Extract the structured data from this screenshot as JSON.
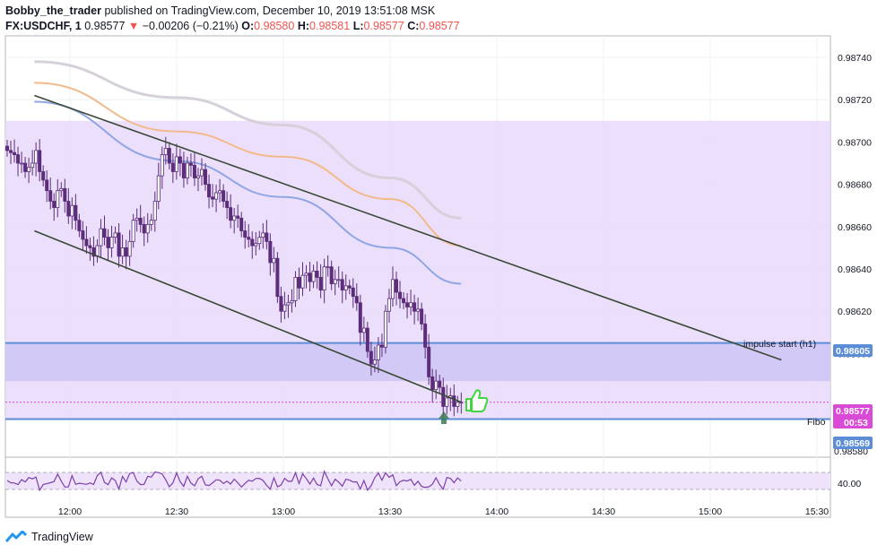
{
  "header": {
    "author": "Bobby_the_trader",
    "published": "published on TradingView.com, December 10, 2019 13:51:08 MSK",
    "symbol": "FX:USDCHF, 1",
    "last": "0.98577",
    "arrow": "▼",
    "change": "−0.00206 (−0.21%)",
    "o_label": "O:",
    "o_value": "0.98580",
    "h_label": "H:",
    "h_value": "0.98581",
    "l_label": "L:",
    "l_value": "0.98577",
    "c_label": "C:",
    "c_value": "0.98577"
  },
  "annotations": {
    "impulse": "impulse start (h1)",
    "fibo": "Fibo"
  },
  "price_tags": {
    "impulse": "0.98605",
    "last": "0.98577",
    "countdown": "00:53",
    "fibo": "0.98569",
    "partial": "0.98580"
  },
  "rsi": {
    "level_label": "40.00"
  },
  "footer": {
    "brand": "TradingView",
    "logo_icon": "tradingview-logo-icon"
  },
  "colors": {
    "zone": "#e8d9fb",
    "zone_band": "#cfc6f6",
    "level_line": "#5b8ed6",
    "last_tag": "#d94ad6",
    "trendline": "#3b4a36",
    "ma_gray": "#d5d0da",
    "ma_orange": "#f2b98a",
    "ma_blue": "#8fa5e4",
    "candle": "#5c2d7a",
    "thumb": "#3fd63f"
  },
  "chart_data": {
    "type": "candlestick",
    "symbol": "FX:USDCHF",
    "interval": "1",
    "x_ticks": [
      "12:00",
      "12:30",
      "13:00",
      "13:30",
      "14:00",
      "14:30",
      "15:00",
      "15:30"
    ],
    "y_ticks": [
      "0.98740",
      "0.98720",
      "0.98700",
      "0.98680",
      "0.98660",
      "0.98640",
      "0.98620",
      "0.98600"
    ],
    "ylim": [
      0.9855,
      0.9876
    ],
    "zone": {
      "top": 0.9871,
      "bottom": 0.98569
    },
    "band": {
      "top": 0.98605,
      "bottom": 0.98587
    },
    "levels": [
      {
        "name": "impulse start (h1)",
        "price": 0.98605
      },
      {
        "name": "Fibo",
        "price": 0.98569
      }
    ],
    "last_price": 0.98577,
    "channel": {
      "upper": [
        [
          "11:50",
          0.98722
        ],
        [
          "15:20",
          0.98597
        ]
      ],
      "lower": [
        [
          "11:50",
          0.98658
        ],
        [
          "13:50",
          0.98577
        ]
      ]
    },
    "moving_averages": [
      {
        "color": "gray",
        "points": [
          [
            "11:50",
            0.98738
          ],
          [
            "12:30",
            0.98721
          ],
          [
            "13:00",
            0.98708
          ],
          [
            "13:30",
            0.98683
          ],
          [
            "13:50",
            0.98664
          ]
        ]
      },
      {
        "color": "orange",
        "points": [
          [
            "11:50",
            0.98728
          ],
          [
            "12:30",
            0.98705
          ],
          [
            "13:00",
            0.98693
          ],
          [
            "13:30",
            0.98673
          ],
          [
            "13:50",
            0.98651
          ]
        ]
      },
      {
        "color": "blue",
        "points": [
          [
            "11:50",
            0.98719
          ],
          [
            "12:30",
            0.98691
          ],
          [
            "13:00",
            0.98674
          ],
          [
            "13:30",
            0.9865
          ],
          [
            "13:50",
            0.98633
          ]
        ]
      }
    ],
    "candles_close": [
      0.98696,
      0.98695,
      0.98694,
      0.9869,
      0.9869,
      0.98686,
      0.98688,
      0.9869,
      0.98696,
      0.98686,
      0.98682,
      0.98677,
      0.98672,
      0.98669,
      0.98677,
      0.98678,
      0.98672,
      0.98665,
      0.9867,
      0.98663,
      0.98658,
      0.98654,
      0.98651,
      0.9865,
      0.98646,
      0.98651,
      0.98659,
      0.98655,
      0.9865,
      0.98655,
      0.98657,
      0.98646,
      0.9865,
      0.98646,
      0.98653,
      0.98663,
      0.98664,
      0.98661,
      0.98657,
      0.98661,
      0.98663,
      0.98672,
      0.98684,
      0.98694,
      0.98697,
      0.9869,
      0.98686,
      0.98693,
      0.9869,
      0.98683,
      0.9869,
      0.98689,
      0.98683,
      0.98684,
      0.98687,
      0.9868,
      0.98674,
      0.98673,
      0.98676,
      0.98677,
      0.98672,
      0.98669,
      0.98663,
      0.98665,
      0.98664,
      0.98658,
      0.98655,
      0.98654,
      0.98651,
      0.98652,
      0.98655,
      0.98657,
      0.98653,
      0.98643,
      0.98645,
      0.98627,
      0.9862,
      0.98623,
      0.98624,
      0.98625,
      0.98636,
      0.98631,
      0.98637,
      0.98638,
      0.98634,
      0.98639,
      0.98636,
      0.9863,
      0.98641,
      0.98641,
      0.98633,
      0.98635,
      0.98635,
      0.9863,
      0.98632,
      0.98631,
      0.98627,
      0.98624,
      0.9861,
      0.98612,
      0.98601,
      0.98595,
      0.98597,
      0.98604,
      0.98603,
      0.9862,
      0.98626,
      0.98635,
      0.98629,
      0.98626,
      0.98624,
      0.98622,
      0.98624,
      0.9862,
      0.98621,
      0.98614,
      0.98603,
      0.98589,
      0.98583,
      0.98587,
      0.98584,
      0.98575,
      0.98579,
      0.9858,
      0.98575,
      0.98577,
      0.98577
    ]
  }
}
